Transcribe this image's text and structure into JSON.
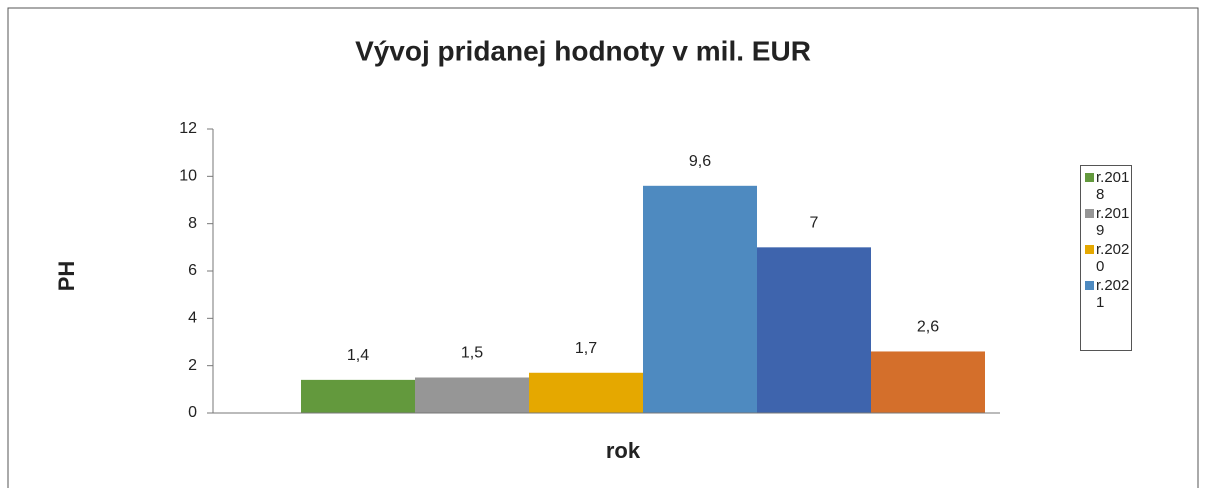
{
  "chart_data": {
    "type": "bar",
    "title": "Vývoj pridanej hodnoty v mil. EUR",
    "ylabel": "PH",
    "xlabel": "rok",
    "ylim": [
      0,
      12
    ],
    "yticks": [
      0,
      2,
      4,
      6,
      8,
      10,
      12
    ],
    "series": [
      {
        "name": "r.2018",
        "color": "#63993d",
        "values": [
          1.4
        ],
        "value_labels": [
          "1,4"
        ]
      },
      {
        "name": "r.2019",
        "color": "#969696",
        "values": [
          1.5
        ],
        "value_labels": [
          "1,5"
        ]
      },
      {
        "name": "r.2020",
        "color": "#e5a800",
        "values": [
          1.7
        ],
        "value_labels": [
          "1,7"
        ]
      },
      {
        "name": "r.2021",
        "color": "#4e8ac0",
        "values": [
          9.6
        ],
        "value_labels": [
          "9,6"
        ]
      },
      {
        "color": "#3e64ad",
        "values": [
          7
        ],
        "value_labels": [
          "7"
        ]
      },
      {
        "color": "#d46f2b",
        "values": [
          2.6
        ],
        "value_labels": [
          "2,6"
        ]
      }
    ]
  }
}
